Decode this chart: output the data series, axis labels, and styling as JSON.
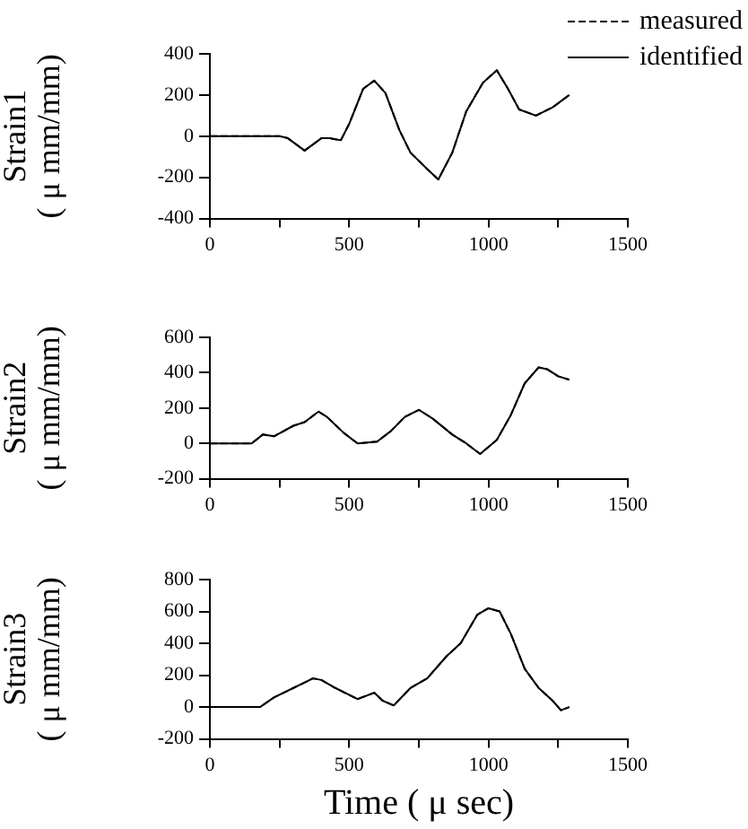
{
  "chart_data": [
    {
      "type": "line",
      "ylabel": "Strain1\n( μ mm/mm)",
      "legend": "top right",
      "xlim": [
        0,
        1500
      ],
      "xticks": [
        0,
        {
          "value": 250,
          "label": null
        },
        500,
        {
          "value": 750,
          "label": null
        },
        1000,
        {
          "value": 1250,
          "label": null
        },
        1500
      ],
      "ylim": [
        -400,
        400
      ],
      "yticks": [
        -400,
        -200,
        0,
        200,
        400
      ],
      "grid": false,
      "marker": "none",
      "x": [
        0,
        250,
        280,
        340,
        400,
        430,
        470,
        500,
        550,
        590,
        630,
        680,
        720,
        780,
        820,
        870,
        920,
        980,
        1030,
        1070,
        1110,
        1170,
        1230,
        1290
      ],
      "series": [
        {
          "name": "measured",
          "color": "#000000",
          "line_style": "dashed",
          "values": [
            0,
            0,
            -10,
            -70,
            -10,
            -10,
            -20,
            60,
            230,
            270,
            210,
            30,
            -80,
            -160,
            -210,
            -80,
            120,
            260,
            320,
            230,
            130,
            100,
            140,
            200
          ]
        },
        {
          "name": "identified",
          "color": "#000000",
          "line_style": "solid",
          "values": [
            0,
            0,
            -10,
            -70,
            -10,
            -10,
            -20,
            60,
            230,
            270,
            210,
            30,
            -80,
            -160,
            -210,
            -80,
            120,
            260,
            320,
            230,
            130,
            100,
            140,
            200
          ]
        }
      ]
    },
    {
      "type": "line",
      "ylabel": "Strain2\n( μ mm/mm)",
      "legend": false,
      "xlim": [
        0,
        1500
      ],
      "xticks": [
        0,
        {
          "value": 250,
          "label": null
        },
        500,
        {
          "value": 750,
          "label": null
        },
        1000,
        {
          "value": 1250,
          "label": null
        },
        1500
      ],
      "ylim": [
        -200,
        600
      ],
      "yticks": [
        -200,
        0,
        200,
        400,
        600
      ],
      "grid": false,
      "marker": "none",
      "x": [
        0,
        150,
        190,
        230,
        300,
        340,
        390,
        420,
        480,
        530,
        600,
        650,
        700,
        750,
        800,
        870,
        920,
        970,
        1030,
        1080,
        1130,
        1180,
        1210,
        1250,
        1290
      ],
      "series": [
        {
          "color": "#000000",
          "line_style": "dashed",
          "values": [
            0,
            0,
            50,
            40,
            100,
            120,
            180,
            150,
            60,
            0,
            10,
            70,
            150,
            190,
            140,
            50,
            0,
            -60,
            20,
            160,
            340,
            430,
            420,
            380,
            360
          ]
        },
        {
          "color": "#000000",
          "line_style": "solid",
          "values": [
            0,
            0,
            50,
            40,
            100,
            120,
            180,
            150,
            60,
            0,
            10,
            70,
            150,
            190,
            140,
            50,
            0,
            -60,
            20,
            160,
            340,
            430,
            420,
            380,
            360
          ]
        }
      ]
    },
    {
      "type": "line",
      "ylabel": "Strain3\n( μ mm/mm)",
      "xlabel": "Time ( μ sec)",
      "legend": false,
      "xlim": [
        0,
        1500
      ],
      "xticks": [
        0,
        {
          "value": 250,
          "label": null
        },
        500,
        {
          "value": 750,
          "label": null
        },
        1000,
        {
          "value": 1250,
          "label": null
        },
        1500
      ],
      "ylim": [
        -200,
        800
      ],
      "yticks": [
        -200,
        0,
        200,
        400,
        600,
        800
      ],
      "grid": false,
      "marker": "none",
      "x": [
        0,
        180,
        230,
        300,
        370,
        400,
        450,
        530,
        590,
        620,
        660,
        720,
        780,
        850,
        900,
        960,
        1000,
        1040,
        1080,
        1130,
        1180,
        1230,
        1260,
        1290
      ],
      "series": [
        {
          "color": "#000000",
          "line_style": "dashed",
          "values": [
            0,
            0,
            60,
            120,
            180,
            170,
            120,
            50,
            90,
            40,
            10,
            120,
            180,
            320,
            400,
            580,
            620,
            600,
            460,
            240,
            120,
            40,
            -20,
            0
          ]
        },
        {
          "color": "#000000",
          "line_style": "solid",
          "values": [
            0,
            0,
            60,
            120,
            180,
            170,
            120,
            50,
            90,
            40,
            10,
            120,
            180,
            320,
            400,
            580,
            620,
            600,
            460,
            240,
            120,
            40,
            -20,
            0
          ]
        }
      ]
    }
  ]
}
